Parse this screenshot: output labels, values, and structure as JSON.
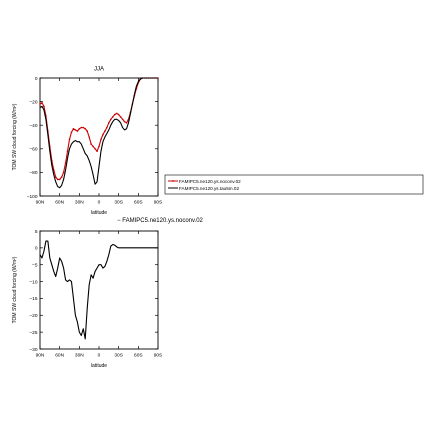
{
  "chart_data": [
    {
      "type": "line",
      "title": "JJA",
      "xlabel": "latitude",
      "ylabel": "TOM SW cloud forcing (W/m²)",
      "xlim": [
        -90,
        90
      ],
      "ylim": [
        -100,
        0
      ],
      "xticks": [
        -90,
        -60,
        -30,
        0,
        30,
        60,
        90
      ],
      "xtick_labels": [
        "90N",
        "60N",
        "30N",
        "0",
        "30S",
        "60S",
        "90S"
      ],
      "yticks": [
        -100,
        -80,
        -60,
        -40,
        -20,
        0
      ],
      "ytick_labels": [
        "−100",
        "−80",
        "−60",
        "−40",
        "−20",
        "0"
      ],
      "legend_position": "right, outside plot",
      "series": [
        {
          "name": "FAMIPC5.ne120.ys.noconv.02",
          "color": "#cc0000",
          "marker": "dot",
          "x": [
            -90,
            -87,
            -84,
            -81,
            -78,
            -75,
            -72,
            -69,
            -66,
            -63,
            -60,
            -57,
            -54,
            -51,
            -48,
            -45,
            -42,
            -39,
            -36,
            -33,
            -30,
            -27,
            -24,
            -21,
            -18,
            -15,
            -12,
            -9,
            -6,
            -3,
            0,
            3,
            6,
            9,
            12,
            15,
            18,
            21,
            24,
            27,
            30,
            33,
            36,
            39,
            42,
            45,
            48,
            51,
            54,
            57,
            60,
            63,
            66,
            69,
            72,
            75,
            78,
            81,
            84,
            87,
            90
          ],
          "values": [
            -22,
            -21,
            -24,
            -32,
            -45,
            -58,
            -70,
            -78,
            -84,
            -86,
            -86,
            -84,
            -80,
            -72,
            -62,
            -52,
            -46,
            -43,
            -44,
            -45,
            -43,
            -42,
            -42,
            -43,
            -45,
            -50,
            -56,
            -58,
            -60,
            -62,
            -58,
            -52,
            -48,
            -45,
            -42,
            -38,
            -35,
            -33,
            -31,
            -30,
            -31,
            -33,
            -35,
            -37,
            -38,
            -35,
            -29,
            -22,
            -15,
            -9,
            -4,
            -1,
            0,
            0,
            0,
            0,
            0,
            0,
            0,
            0,
            0
          ]
        },
        {
          "name": "FAMIPC5.ne120.ys.tau5m.02",
          "color": "#000000",
          "marker": "none",
          "x": [
            -90,
            -87,
            -84,
            -81,
            -78,
            -75,
            -72,
            -69,
            -66,
            -63,
            -60,
            -57,
            -54,
            -51,
            -48,
            -45,
            -42,
            -39,
            -36,
            -33,
            -30,
            -27,
            -24,
            -21,
            -18,
            -15,
            -12,
            -9,
            -6,
            -3,
            0,
            3,
            6,
            9,
            12,
            15,
            18,
            21,
            24,
            27,
            30,
            33,
            36,
            39,
            42,
            45,
            48,
            51,
            54,
            57,
            60,
            63,
            66,
            69,
            72,
            75,
            78,
            81,
            84,
            87,
            90
          ],
          "values": [
            -25,
            -24,
            -27,
            -35,
            -48,
            -62,
            -74,
            -82,
            -88,
            -92,
            -93,
            -91,
            -86,
            -78,
            -68,
            -60,
            -56,
            -54,
            -53,
            -54,
            -54,
            -56,
            -60,
            -64,
            -66,
            -70,
            -75,
            -82,
            -90,
            -88,
            -75,
            -62,
            -54,
            -50,
            -47,
            -44,
            -40,
            -37,
            -35,
            -35,
            -36,
            -38,
            -42,
            -44,
            -43,
            -38,
            -30,
            -22,
            -14,
            -7,
            -3,
            -1,
            0,
            0,
            0,
            0,
            0,
            0,
            0,
            0,
            0
          ]
        }
      ]
    },
    {
      "type": "line",
      "title": "− FAMIPC5.ne120.ys.noconv.02",
      "xlabel": "latitude",
      "ylabel": "TOM SW cloud forcing (W/m²)",
      "xlim": [
        -90,
        90
      ],
      "ylim": [
        -30,
        5
      ],
      "xticks": [
        -90,
        -60,
        -30,
        0,
        30,
        60,
        90
      ],
      "xtick_labels": [
        "90N",
        "60N",
        "30N",
        "0",
        "30S",
        "60S",
        "90S"
      ],
      "yticks": [
        -30,
        -25,
        -20,
        -15,
        -10,
        -5,
        0,
        5
      ],
      "ytick_labels": [
        "−30",
        "−25",
        "−20",
        "−15",
        "−10",
        "−5",
        "0",
        "5"
      ],
      "series": [
        {
          "color": "#000000",
          "x": [
            -90,
            -87,
            -84,
            -81,
            -78,
            -75,
            -72,
            -69,
            -66,
            -63,
            -60,
            -57,
            -54,
            -51,
            -48,
            -45,
            -42,
            -39,
            -36,
            -33,
            -30,
            -27,
            -24,
            -21,
            -18,
            -15,
            -12,
            -9,
            -6,
            -3,
            0,
            3,
            6,
            9,
            12,
            15,
            18,
            21,
            24,
            27,
            30,
            33,
            36,
            39,
            42,
            45,
            48,
            51,
            54,
            57,
            60,
            63,
            66,
            69,
            72,
            75,
            78,
            81,
            84,
            87,
            90
          ],
          "values": [
            -2,
            -3,
            -1,
            2,
            2,
            -3,
            -5,
            -7,
            -8.5,
            -6,
            -3,
            -4,
            -6,
            -9.5,
            -10,
            -9.5,
            -10,
            -15,
            -20,
            -22,
            -25,
            -26,
            -24,
            -27,
            -18,
            -11,
            -8,
            -9,
            -7,
            -6,
            -5,
            -5,
            -6,
            -5.5,
            -4,
            -2,
            0.5,
            1,
            0.8,
            0.3,
            0,
            0,
            0,
            0,
            0,
            0,
            0,
            0,
            0,
            0,
            0,
            0,
            0,
            0,
            0,
            0,
            0,
            0,
            0,
            0,
            0
          ]
        }
      ]
    }
  ]
}
